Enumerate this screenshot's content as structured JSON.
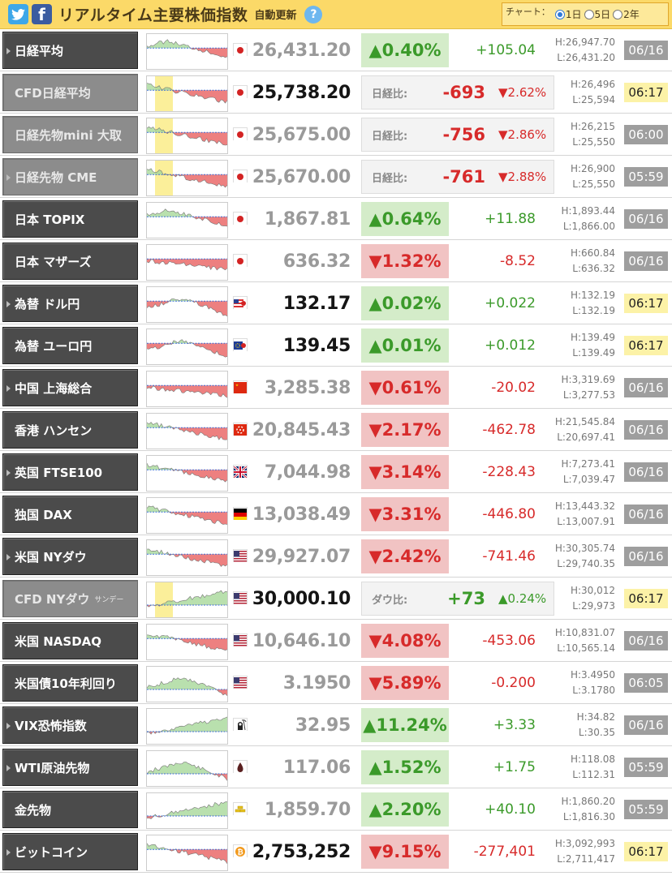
{
  "header": {
    "title": "リアルタイム主要株価指数",
    "auto_update": "自動更新",
    "help_label": "?",
    "twitter_icon": "twitter-icon",
    "facebook_icon": "facebook-icon",
    "chart_label": "チャート：",
    "chart_options": [
      {
        "label": "1日",
        "selected": true
      },
      {
        "label": "5日",
        "selected": false
      },
      {
        "label": "2年",
        "selected": false
      }
    ]
  },
  "colors": {
    "up": "#3b9a2a",
    "down": "#d72a2a",
    "header_bg": "#fbd968",
    "live_date_bg": "#fcf2a7"
  },
  "rows": [
    {
      "name": "日経平均",
      "arrow": true,
      "cfd": false,
      "flag": "japan-flag-icon",
      "price": "26,431.20",
      "price_dark": false,
      "dir": "up",
      "pct": "▲0.40%",
      "chg": "+105.04",
      "high": "H:26,947.70",
      "low": "L:26,431.20",
      "date": "06/16",
      "live": false,
      "trend": "down-after-peak",
      "highlight": false
    },
    {
      "name": "CFD日経平均",
      "arrow": false,
      "cfd": true,
      "flag": "japan-flag-icon",
      "price": "25,738.20",
      "price_dark": true,
      "dir": "dn",
      "cfd_label": "日経比:",
      "cfd_value": "-693",
      "cfd_pct": "▼2.62%",
      "high": "H:26,496",
      "low": "L:25,594",
      "date": "06:17",
      "live": true,
      "trend": "down",
      "highlight": true
    },
    {
      "name": "日経先物mini 大取",
      "arrow": false,
      "cfd": true,
      "flag": "japan-flag-icon",
      "price": "25,675.00",
      "price_dark": false,
      "dir": "dn",
      "cfd_label": "日経比:",
      "cfd_value": "-756",
      "cfd_pct": "▼2.86%",
      "high": "H:26,215",
      "low": "L:25,550",
      "date": "06:00",
      "live": false,
      "trend": "down",
      "highlight": true
    },
    {
      "name": "日経先物 CME",
      "arrow": true,
      "cfd": true,
      "flag": "japan-flag-icon",
      "price": "25,670.00",
      "price_dark": false,
      "dir": "dn",
      "cfd_label": "日経比:",
      "cfd_value": "-761",
      "cfd_pct": "▼2.88%",
      "high": "H:26,900",
      "low": "L:25,550",
      "date": "05:59",
      "live": false,
      "trend": "down",
      "highlight": true
    },
    {
      "name": "日本 TOPIX",
      "arrow": false,
      "cfd": false,
      "flag": "japan-flag-icon",
      "price": "1,867.81",
      "price_dark": false,
      "dir": "up",
      "pct": "▲0.64%",
      "chg": "+11.88",
      "high": "H:1,893.44",
      "low": "L:1,866.00",
      "date": "06/16",
      "live": false,
      "trend": "down-after-peak",
      "highlight": false
    },
    {
      "name": "日本 マザーズ",
      "arrow": false,
      "cfd": false,
      "flag": "japan-flag-icon",
      "price": "636.32",
      "price_dark": false,
      "dir": "dn",
      "pct": "▼1.32%",
      "chg": "-8.52",
      "high": "H:660.84",
      "low": "L:636.32",
      "date": "06/16",
      "live": false,
      "trend": "flat-down",
      "highlight": false
    },
    {
      "name": "為替 ドル円",
      "arrow": true,
      "cfd": false,
      "flag": "usd-jpy-flag-icon",
      "price": "132.17",
      "price_dark": true,
      "dir": "up",
      "pct": "▲0.02%",
      "chg": "+0.022",
      "high": "H:132.19",
      "low": "L:132.19",
      "date": "06:17",
      "live": true,
      "trend": "up-then-down",
      "highlight": false
    },
    {
      "name": "為替 ユーロ円",
      "arrow": false,
      "cfd": false,
      "flag": "eur-jpy-flag-icon",
      "price": "139.45",
      "price_dark": true,
      "dir": "up",
      "pct": "▲0.01%",
      "chg": "+0.012",
      "high": "H:139.49",
      "low": "L:139.49",
      "date": "06:17",
      "live": true,
      "trend": "up-then-down",
      "highlight": false
    },
    {
      "name": "中国 上海総合",
      "arrow": true,
      "cfd": false,
      "flag": "china-flag-icon",
      "price": "3,285.38",
      "price_dark": false,
      "dir": "dn",
      "pct": "▼0.61%",
      "chg": "-20.02",
      "high": "H:3,319.69",
      "low": "L:3,277.53",
      "date": "06/16",
      "live": false,
      "trend": "flat-down",
      "highlight": false
    },
    {
      "name": "香港 ハンセン",
      "arrow": false,
      "cfd": false,
      "flag": "hongkong-flag-icon",
      "price": "20,845.43",
      "price_dark": false,
      "dir": "dn",
      "pct": "▼2.17%",
      "chg": "-462.78",
      "high": "H:21,545.84",
      "low": "L:20,697.41",
      "date": "06/16",
      "live": false,
      "trend": "down",
      "highlight": false
    },
    {
      "name": "英国 FTSE100",
      "arrow": true,
      "cfd": false,
      "flag": "uk-flag-icon",
      "price": "7,044.98",
      "price_dark": false,
      "dir": "dn",
      "pct": "▼3.14%",
      "chg": "-228.43",
      "high": "H:7,273.41",
      "low": "L:7,039.47",
      "date": "06/16",
      "live": false,
      "trend": "down",
      "highlight": false
    },
    {
      "name": "独国 DAX",
      "arrow": false,
      "cfd": false,
      "flag": "germany-flag-icon",
      "price": "13,038.49",
      "price_dark": false,
      "dir": "dn",
      "pct": "▼3.31%",
      "chg": "-446.80",
      "high": "H:13,443.32",
      "low": "L:13,007.91",
      "date": "06/16",
      "live": false,
      "trend": "down",
      "highlight": false
    },
    {
      "name": "米国 NYダウ",
      "arrow": true,
      "cfd": false,
      "flag": "us-flag-icon",
      "price": "29,927.07",
      "price_dark": false,
      "dir": "dn",
      "pct": "▼2.42%",
      "chg": "-741.46",
      "high": "H:30,305.74",
      "low": "L:29,740.35",
      "date": "06/16",
      "live": false,
      "trend": "down",
      "highlight": false
    },
    {
      "name": "CFD NYダウ",
      "name_small": "サンデー",
      "arrow": false,
      "cfd": true,
      "flag": "us-flag-icon",
      "price": "30,000.10",
      "price_dark": true,
      "dir": "up",
      "cfd_label": "ダウ比:",
      "cfd_value": "+73",
      "cfd_pct": "▲0.24%",
      "high": "H:30,012",
      "low": "L:29,973",
      "date": "06:17",
      "live": true,
      "trend": "up",
      "highlight": true
    },
    {
      "name": "米国 NASDAQ",
      "arrow": false,
      "cfd": false,
      "flag": "us-flag-icon",
      "price": "10,646.10",
      "price_dark": false,
      "dir": "dn",
      "pct": "▼4.08%",
      "chg": "-453.06",
      "high": "H:10,831.07",
      "low": "L:10,565.14",
      "date": "06/16",
      "live": false,
      "trend": "down",
      "highlight": false
    },
    {
      "name": "米国債10年利回り",
      "arrow": false,
      "cfd": false,
      "flag": "us-flag-icon",
      "price": "3.1950",
      "price_dark": false,
      "dir": "dn",
      "pct": "▼5.89%",
      "chg": "-0.200",
      "high": "H:3.4950",
      "low": "L:3.1780",
      "date": "06:05",
      "live": false,
      "trend": "up-then-down",
      "highlight": false
    },
    {
      "name": "VIX恐怖指数",
      "arrow": true,
      "cfd": false,
      "flag": "reaper-icon",
      "price": "32.95",
      "price_dark": false,
      "dir": "up",
      "pct": "▲11.24%",
      "chg": "+3.33",
      "high": "H:34.82",
      "low": "L:30.35",
      "date": "06/16",
      "live": false,
      "trend": "up",
      "highlight": false
    },
    {
      "name": "WTI原油先物",
      "arrow": true,
      "cfd": false,
      "flag": "oil-drop-icon",
      "price": "117.06",
      "price_dark": false,
      "dir": "up",
      "pct": "▲1.52%",
      "chg": "+1.75",
      "high": "H:118.08",
      "low": "L:112.31",
      "date": "05:59",
      "live": false,
      "trend": "up-then-down",
      "highlight": false
    },
    {
      "name": "金先物",
      "arrow": false,
      "cfd": false,
      "flag": "gold-bars-icon",
      "price": "1,859.70",
      "price_dark": false,
      "dir": "up",
      "pct": "▲2.20%",
      "chg": "+40.10",
      "high": "H:1,860.20",
      "low": "L:1,816.30",
      "date": "05:59",
      "live": false,
      "trend": "up",
      "highlight": false
    },
    {
      "name": "ビットコイン",
      "arrow": true,
      "cfd": false,
      "flag": "bitcoin-icon",
      "price": "2,753,252",
      "price_dark": true,
      "dir": "dn",
      "pct": "▼9.15%",
      "chg": "-277,401",
      "high": "H:3,092,993",
      "low": "L:2,711,417",
      "date": "06:17",
      "live": true,
      "trend": "down",
      "highlight": false
    }
  ]
}
